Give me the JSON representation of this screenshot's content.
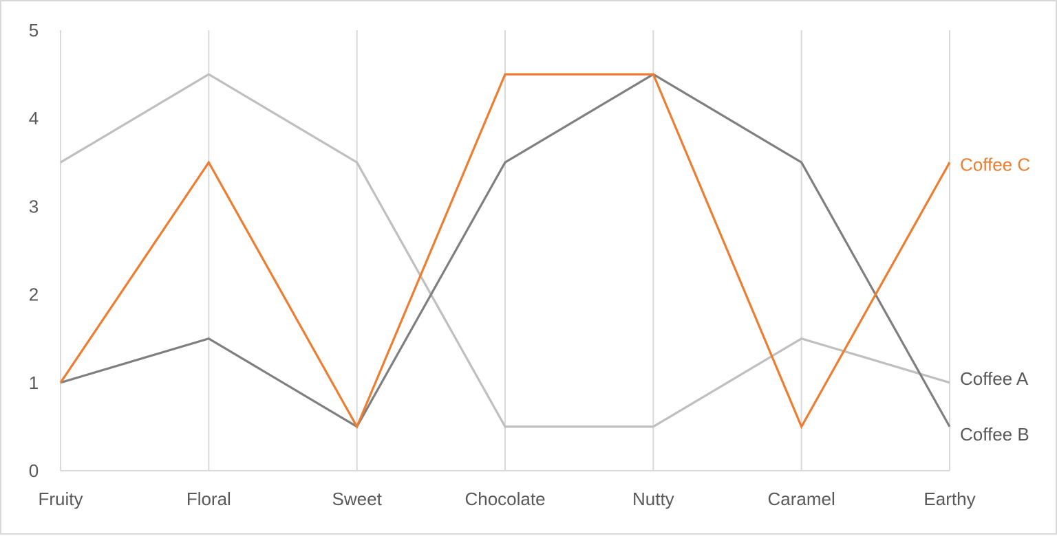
{
  "chart_data": {
    "type": "line",
    "subtype": "parallel-coordinates",
    "title": "",
    "xlabel": "",
    "ylabel": "",
    "categories": [
      "Fruity",
      "Floral",
      "Sweet",
      "Chocolate",
      "Nutty",
      "Caramel",
      "Earthy"
    ],
    "ylim": [
      0,
      5
    ],
    "yticks": [
      0,
      1,
      2,
      3,
      4,
      5
    ],
    "grid": "vertical axis lines at each category",
    "legend": "direct labels at right end of each series",
    "series": [
      {
        "name": "Coffee A",
        "color": "#bfbfbf",
        "label_color": "#595959",
        "values": [
          3.5,
          4.5,
          3.5,
          0.5,
          0.5,
          1.5,
          1
        ]
      },
      {
        "name": "Coffee B",
        "color": "#7f7f7f",
        "label_color": "#595959",
        "values": [
          1,
          1.5,
          0.5,
          3.5,
          4.5,
          3.5,
          0.5
        ]
      },
      {
        "name": "Coffee C",
        "color": "#ed7d31",
        "label_color": "#ed7d31",
        "values": [
          1,
          3.5,
          0.5,
          4.5,
          4.5,
          0.5,
          3.5
        ]
      }
    ]
  },
  "colors": {
    "axis_line": "#d9d9d9",
    "text": "#595959",
    "accent": "#ed7d31"
  }
}
